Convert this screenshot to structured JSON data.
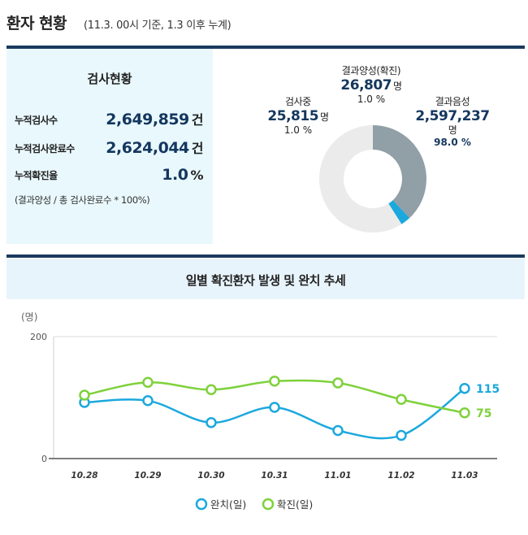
{
  "header": {
    "title": "환자 현황",
    "subtitle": "(11.3. 00시 기준, 1.3 이후 누계)"
  },
  "stats": {
    "title": "검사현황",
    "rows": [
      {
        "label": "누적검사수",
        "value": "2,649,859",
        "unit": "건"
      },
      {
        "label": "누적검사완료수",
        "value": "2,624,044",
        "unit": "건"
      },
      {
        "label": "누적확진율",
        "value": "1.0",
        "unit": "%"
      }
    ],
    "note": "(결과양성 / 총 검사완료수 * 100%)"
  },
  "donut": {
    "segments": [
      {
        "key": "testing",
        "name": "검사중",
        "value": "25,815",
        "unit": "명",
        "pct": "1.0 %",
        "fraction": 0.38,
        "color": "#919fa6"
      },
      {
        "key": "positive",
        "name": "결과양성(확진)",
        "value": "26,807",
        "unit": "명",
        "pct": "1.0 %",
        "fraction": 0.03,
        "color": "#1ba8dd"
      },
      {
        "key": "negative",
        "name": "결과음성",
        "value": "2,597,237",
        "unit": "명",
        "pct": "98.0 %",
        "fraction": 0.59,
        "color": "#ebebeb"
      }
    ]
  },
  "chart_data": {
    "type": "line",
    "title": "일별 확진환자 발생 및 완치 추세",
    "ylabel": "(명)",
    "ylim": [
      0,
      200
    ],
    "yticks": [
      "200",
      "0"
    ],
    "categories": [
      "10.28",
      "10.29",
      "10.30",
      "10.31",
      "11.01",
      "11.02",
      "11.03"
    ],
    "series": [
      {
        "name": "완치(일)",
        "color": "#1ba8dd",
        "values": [
          92,
          95,
          59,
          84,
          46,
          38,
          115
        ],
        "end_label": "115"
      },
      {
        "name": "확진(일)",
        "color": "#7ed13b",
        "values": [
          104,
          125,
          113,
          127,
          124,
          97,
          75
        ],
        "end_label": "75"
      }
    ],
    "grid": true,
    "legend": "bottom"
  }
}
